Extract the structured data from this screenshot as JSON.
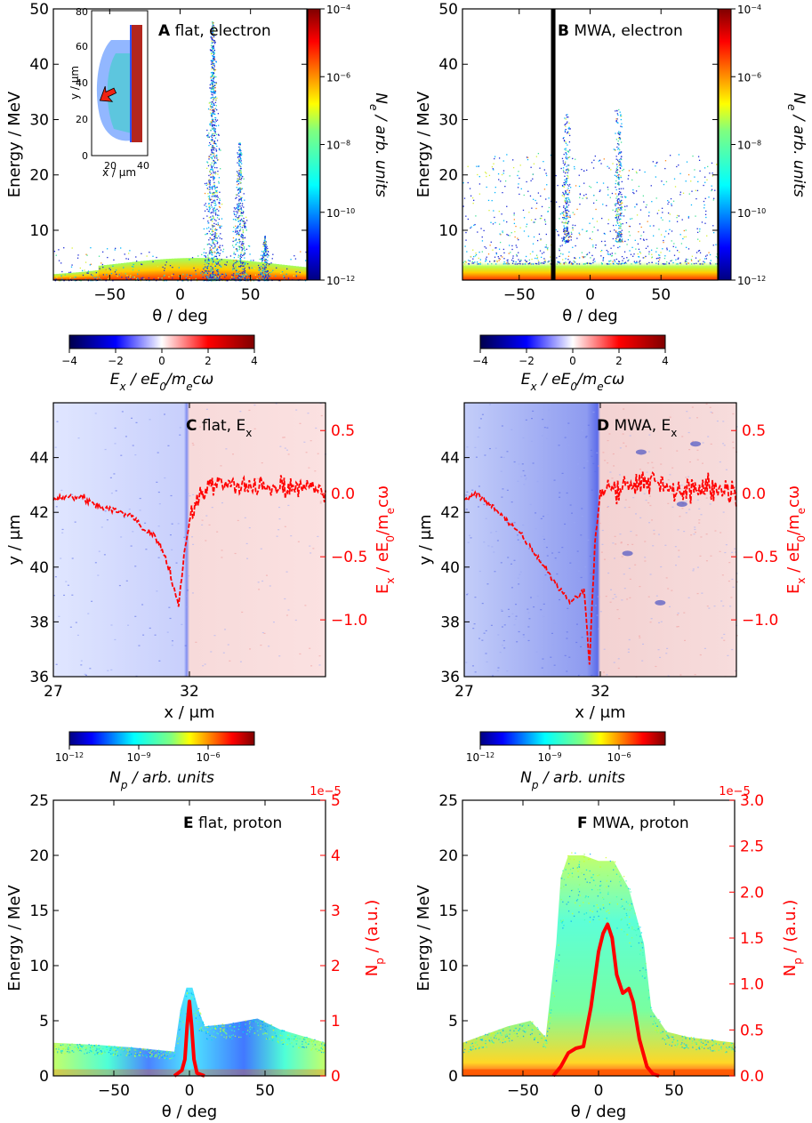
{
  "colors": {
    "red": "#ff0000",
    "axis": "#000000",
    "electron_bg": "#ffffff"
  },
  "units": {
    "energy": "Energy / MeV",
    "theta": "θ / deg",
    "y_um": "y / μm",
    "x_um": "x / μm",
    "ne": "N_e / arb. units",
    "np_arb": "N_p / arb. units",
    "np_au": "N_p / (a.u.)",
    "ex_norm": "E_x / eE_0/m_ecω",
    "ex_colorbar": "E_x / eE_0/m_ecω"
  },
  "chart_data": [
    {
      "panel": "A",
      "type": "heatmap",
      "letter": "A",
      "title": "flat, electron",
      "xlabel": "θ / deg",
      "ylabel": "Energy / MeV",
      "xlim": [
        -90,
        90
      ],
      "ylim": [
        1,
        50
      ],
      "xticks": [
        "-50",
        "0",
        "50"
      ],
      "yticks": [
        "10",
        "20",
        "30",
        "40",
        "50"
      ],
      "colorbar": {
        "label": "N_e / arb. units",
        "ticks": [
          "10^-12",
          "10^-10",
          "10^-8",
          "10^-6",
          "10^-4"
        ],
        "range": [
          -12,
          -4
        ]
      },
      "inset": {
        "xlabel": "x / μm",
        "ylabel": "y / μm",
        "xticks": [
          "20",
          "40"
        ],
        "yticks": [
          "0",
          "20",
          "40",
          "60",
          "80"
        ]
      },
      "peaks": [
        {
          "theta": 23,
          "max_energy": 47
        },
        {
          "theta": 42,
          "max_energy": 25
        },
        {
          "theta": 60,
          "max_energy": 8
        }
      ]
    },
    {
      "panel": "B",
      "type": "heatmap",
      "letter": "B",
      "title": "MWA, electron",
      "xlabel": "θ / deg",
      "ylabel": "Energy / MeV",
      "xlim": [
        -90,
        90
      ],
      "ylim": [
        1,
        50
      ],
      "xticks": [
        "-50",
        "0",
        "50"
      ],
      "yticks": [
        "10",
        "20",
        "30",
        "40",
        "50"
      ],
      "colorbar": {
        "label": "N_e / arb. units",
        "ticks": [
          "10^-12",
          "10^-10",
          "10^-8",
          "10^-6",
          "10^-4"
        ],
        "range": [
          -12,
          -4
        ]
      },
      "vline_theta": -26,
      "peaks": [
        {
          "theta": -17,
          "max_energy": 31
        },
        {
          "theta": 20,
          "max_energy": 32
        }
      ]
    },
    {
      "panel": "C",
      "type": "heatmap",
      "letter": "C",
      "title": "flat, E_x",
      "xlabel": "x / μm",
      "ylabel": "y / μm",
      "ylabel_right": "E_x / eE_0/m_ecω",
      "xlim": [
        27,
        37
      ],
      "ylim": [
        36,
        46
      ],
      "y2lim": [
        -1.45,
        0.72
      ],
      "xticks": [
        "27",
        "32"
      ],
      "yticks": [
        "36",
        "38",
        "40",
        "42",
        "44"
      ],
      "y2ticks": [
        "-1.0",
        "-0.5",
        "0.0",
        "0.5"
      ],
      "colorbar": {
        "label": "E_x / eE_0/m_ecω",
        "ticks": [
          "-4",
          "-2",
          "0",
          "2",
          "4"
        ],
        "range": [
          -4,
          4
        ]
      },
      "profile_x": [
        27,
        27.5,
        28,
        28.5,
        29,
        29.5,
        30,
        30.3,
        30.6,
        30.9,
        31.2,
        31.4,
        31.6,
        31.8,
        32,
        32.3,
        32.6,
        33,
        34,
        35,
        36,
        37
      ],
      "profile_y": [
        -0.05,
        -0.03,
        -0.02,
        -0.08,
        -0.12,
        -0.15,
        -0.2,
        -0.28,
        -0.32,
        -0.4,
        -0.55,
        -0.72,
        -0.88,
        -0.5,
        -0.22,
        -0.05,
        0.05,
        0.08,
        0.06,
        0.04,
        0.05,
        0.03
      ]
    },
    {
      "panel": "D",
      "type": "heatmap",
      "letter": "D",
      "title": "MWA, E_x",
      "xlabel": "x / μm",
      "ylabel": "y / μm",
      "ylabel_right": "E_x / eE_0/m_ecω",
      "xlim": [
        27,
        37
      ],
      "ylim": [
        36,
        46
      ],
      "y2lim": [
        -1.45,
        0.72
      ],
      "xticks": [
        "27",
        "32"
      ],
      "yticks": [
        "36",
        "38",
        "40",
        "42",
        "44"
      ],
      "y2ticks": [
        "-1.0",
        "-0.5",
        "0.0",
        "0.5"
      ],
      "colorbar": {
        "label": "E_x / eE_0/m_ecω",
        "ticks": [
          "-4",
          "-2",
          "0",
          "2",
          "4"
        ],
        "range": [
          -4,
          4
        ]
      },
      "profile_x": [
        27,
        27.5,
        28,
        28.5,
        29,
        29.5,
        30,
        30.3,
        30.6,
        30.9,
        31.2,
        31.4,
        31.6,
        31.8,
        32,
        32.3,
        32.6,
        33,
        34,
        35,
        36,
        37
      ],
      "profile_y": [
        -0.05,
        0.0,
        -0.1,
        -0.2,
        -0.3,
        -0.45,
        -0.6,
        -0.7,
        -0.78,
        -0.85,
        -0.82,
        -0.75,
        -1.35,
        -0.4,
        0.02,
        0.1,
        0.05,
        0.08,
        0.1,
        0.03,
        0.05,
        0.02
      ]
    },
    {
      "panel": "E",
      "type": "heatmap",
      "letter": "E",
      "title": "flat, proton",
      "xlabel": "θ / deg",
      "ylabel": "Energy / MeV",
      "ylabel_right": "N_p / (a.u.)",
      "xlim": [
        -90,
        90
      ],
      "ylim": [
        0,
        25
      ],
      "y2lim": [
        0,
        5e-05
      ],
      "xticks": [
        "-50",
        "0",
        "50"
      ],
      "yticks": [
        "0",
        "5",
        "10",
        "15",
        "20",
        "25"
      ],
      "y2ticks": [
        "0",
        "1",
        "2",
        "3",
        "4",
        "5"
      ],
      "y2exp": "1e−5",
      "colorbar": {
        "label": "N_p / arb. units",
        "ticks": [
          "10^-12",
          "10^-9",
          "10^-6"
        ],
        "range": [
          -12,
          -4
        ]
      },
      "envelope_theta": [
        -90,
        -60,
        -40,
        -25,
        -10,
        -6,
        -2,
        2,
        6,
        10,
        25,
        45,
        60,
        90
      ],
      "envelope_energy": [
        3,
        2.8,
        2.6,
        2.4,
        2.2,
        6,
        8,
        8,
        6,
        4.5,
        4.7,
        5.2,
        4.2,
        3
      ],
      "profile_theta": [
        -10,
        -5,
        -3,
        -1.5,
        0,
        1.5,
        3,
        5,
        10
      ],
      "profile_np": [
        0,
        1e-06,
        3e-06,
        9e-06,
        1.35e-05,
        9e-06,
        3e-06,
        5e-07,
        0
      ]
    },
    {
      "panel": "F",
      "type": "heatmap",
      "letter": "F",
      "title": "MWA, proton",
      "xlabel": "θ / deg",
      "ylabel": "Energy / MeV",
      "ylabel_right": "N_p / (a.u.)",
      "xlim": [
        -90,
        90
      ],
      "ylim": [
        0,
        25
      ],
      "y2lim": [
        0,
        3e-05
      ],
      "xticks": [
        "-50",
        "0",
        "50"
      ],
      "yticks": [
        "0",
        "5",
        "10",
        "15",
        "20",
        "25"
      ],
      "y2ticks": [
        "0.0",
        "0.5",
        "1.0",
        "1.5",
        "2.0",
        "2.5",
        "3.0"
      ],
      "y2exp": "1e−5",
      "colorbar": {
        "label": "N_p / arb. units",
        "ticks": [
          "10^-12",
          "10^-9",
          "10^-6"
        ],
        "range": [
          -12,
          -4
        ]
      },
      "envelope_theta": [
        -90,
        -60,
        -45,
        -35,
        -28,
        -25,
        -20,
        -10,
        0,
        10,
        20,
        30,
        35,
        45,
        60,
        90
      ],
      "envelope_energy": [
        3,
        4.5,
        5,
        3.5,
        12,
        18,
        20,
        20,
        19.5,
        19.5,
        17,
        12,
        6,
        4,
        3.5,
        3
      ],
      "profile_theta": [
        -30,
        -25,
        -20,
        -15,
        -10,
        -5,
        0,
        3,
        6,
        9,
        12,
        16,
        20,
        23,
        27,
        32,
        36,
        40
      ],
      "profile_np": [
        0,
        1e-06,
        2.5e-06,
        3e-06,
        3.2e-06,
        7.5e-06,
        1.35e-05,
        1.55e-05,
        1.65e-05,
        1.5e-05,
        1.1e-05,
        9e-06,
        9.5e-06,
        8e-06,
        4e-06,
        1e-06,
        2e-07,
        0
      ]
    }
  ]
}
